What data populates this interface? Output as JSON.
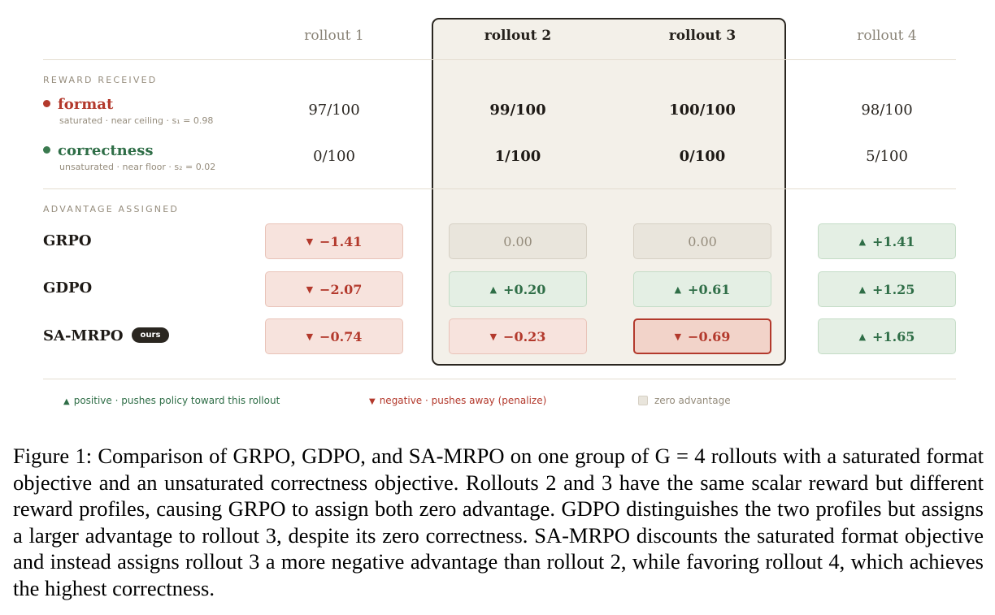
{
  "columns": [
    "rollout 1",
    "rollout 2",
    "rollout 3",
    "rollout 4"
  ],
  "highlighted_columns": [
    1,
    2
  ],
  "sections": {
    "reward": "REWARD RECEIVED",
    "advantage": "ADVANTAGE ASSIGNED"
  },
  "objectives": [
    {
      "name": "format",
      "subtitle": "saturated · near ceiling · s₁ = 0.98",
      "color": "#b3392c",
      "values": [
        "97/100",
        "99/100",
        "100/100",
        "98/100"
      ]
    },
    {
      "name": "correctness",
      "subtitle": "unsaturated · near floor · s₂ = 0.02",
      "color": "#2f6e47",
      "values": [
        "0/100",
        "1/100",
        "0/100",
        "5/100"
      ]
    }
  ],
  "methods": [
    {
      "name": "GRPO",
      "badge": "",
      "values": [
        "−1.41",
        "0.00",
        "0.00",
        "+1.41"
      ],
      "kinds": [
        "neg",
        "zero",
        "zero",
        "pos"
      ]
    },
    {
      "name": "GDPO",
      "badge": "",
      "values": [
        "−2.07",
        "+0.20",
        "+0.61",
        "+1.25"
      ],
      "kinds": [
        "neg",
        "pos",
        "pos",
        "pos"
      ]
    },
    {
      "name": "SA-MRPO",
      "badge": "ours",
      "values": [
        "−0.74",
        "−0.23",
        "−0.69",
        "+1.65"
      ],
      "kinds": [
        "neg",
        "neg",
        "neg",
        "pos"
      ],
      "emphasized": 2
    }
  ],
  "arrows": {
    "pos": "▲",
    "neg": "▼"
  },
  "legend": {
    "positive": "positive · pushes policy toward this rollout",
    "negative": "negative · pushes away (penalize)",
    "zero": "zero advantage"
  },
  "caption": "Figure 1: Comparison of GRPO, GDPO, and SA-MRPO on one group of G = 4 rollouts with a saturated format objective and an unsaturated correctness objective. Rollouts 2 and 3 have the same scalar reward but different reward profiles, causing GRPO to assign both zero advantage. GDPO distinguishes the two profiles but assigns a larger advantage to rollout 3, despite its zero correctness. SA-MRPO discounts the saturated format objective and instead assigns rollout 3 a more negative advantage than rollout 2, while favoring rollout 4, which achieves the highest correctness."
}
